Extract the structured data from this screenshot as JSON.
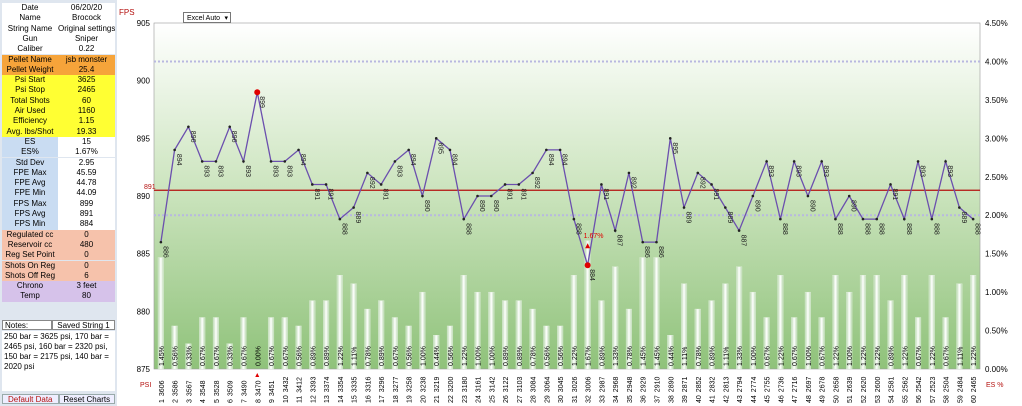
{
  "sidebar": {
    "rows": [
      {
        "label": "Date",
        "value": "06/20/20",
        "group": "white"
      },
      {
        "label": "Name",
        "value": "Brocock",
        "group": "white"
      },
      {
        "label": "String Name",
        "value": "Original settings",
        "group": "white"
      },
      {
        "label": "Gun",
        "value": "Sniper",
        "group": "white"
      },
      {
        "label": "Caliber",
        "value": "0.22",
        "group": "white"
      },
      {
        "label": "Pellet Name",
        "value": "jsb monster",
        "group": "orange"
      },
      {
        "label": "Pellet  Weight",
        "value": "25.4",
        "group": "orange"
      },
      {
        "label": "Psi Start",
        "value": "3625",
        "group": "yellow"
      },
      {
        "label": "Psi Stop",
        "value": "2465",
        "group": "yellow"
      },
      {
        "label": "Total Shots",
        "value": "60",
        "group": "yellow"
      },
      {
        "label": "Air Used",
        "value": "1160",
        "group": "yellow"
      },
      {
        "label": "Efficiency",
        "value": "1.15",
        "group": "yellow"
      },
      {
        "label": "Avg. lbs/Shot",
        "value": "19.33",
        "group": "yellow"
      },
      {
        "label": "ES",
        "value": "15",
        "group": "blue"
      },
      {
        "label": "ES%",
        "value": "1.67%",
        "group": "blue"
      },
      {
        "label": "Std Dev",
        "value": "2.95",
        "group": "blue"
      },
      {
        "label": "FPE Max",
        "value": "45.59",
        "group": "blue"
      },
      {
        "label": "FPE Avg",
        "value": "44.78",
        "group": "blue"
      },
      {
        "label": "FPE Min",
        "value": "44.09",
        "group": "blue"
      },
      {
        "label": "FPS Max",
        "value": "899",
        "group": "blue"
      },
      {
        "label": "FPS Avg",
        "value": "891",
        "group": "blue"
      },
      {
        "label": "FPS Min",
        "value": "884",
        "group": "blue"
      },
      {
        "label": "Regulated cc",
        "value": "0",
        "group": "salmon"
      },
      {
        "label": "Reservoir cc",
        "value": "480",
        "group": "salmon"
      },
      {
        "label": "Reg Set Point",
        "value": "0",
        "group": "salmon"
      },
      {
        "label": "Shots On Reg",
        "value": "0",
        "group": "salmon"
      },
      {
        "label": "Shots Off Reg",
        "value": "6",
        "group": "salmon"
      },
      {
        "label": "Chrono",
        "value": "3 feet",
        "group": "purple"
      },
      {
        "label": "Temp",
        "value": "80",
        "group": "purple"
      }
    ],
    "notes_label": "Notes:",
    "saved_label": "Saved String 1",
    "notes_text": "250 bar = 3625 psi, 170 bar = 2465 psi, 160 bar = 2320 psi, 150 bar = 2175 psi, 140 bar = 2020 psi",
    "default_data": "Default Data",
    "reset_charts": "Reset Charts",
    "group_colors": {
      "white": "#ffffff",
      "orange": "#f6a43a",
      "yellow": "#ffff33",
      "blue": "#c9dcf2",
      "salmon": "#f6c2ab",
      "purple": "#d6c2ea"
    }
  },
  "dropdown": {
    "value": "Excel Auto"
  },
  "chart_data": {
    "type": "line",
    "ylabel_left": "FPS",
    "ylabel_right": "",
    "left_ticks": [
      "905",
      "900",
      "895",
      "890",
      "885",
      "880",
      "875"
    ],
    "right_ticks": [
      "4.50%",
      "4.00%",
      "3.50%",
      "3.00%",
      "2.50%",
      "2.00%",
      "1.50%",
      "1.00%",
      "0.50%",
      "0.00%"
    ],
    "ylim": [
      875,
      905
    ],
    "y2lim": [
      0,
      4.5
    ],
    "psi_label": "PSI",
    "es_label": "ES %",
    "avg_line_label": "891",
    "avg_fps": 890.5,
    "series_fps": [
      886,
      894,
      896,
      893,
      893,
      896,
      893,
      899,
      893,
      893,
      894,
      891,
      891,
      888,
      889,
      892,
      891,
      893,
      894,
      890,
      895,
      894,
      888,
      890,
      890,
      891,
      891,
      892,
      894,
      894,
      888,
      884,
      891,
      887,
      892,
      886,
      886,
      895,
      889,
      892,
      891,
      889,
      887,
      890,
      893,
      888,
      893,
      890,
      893,
      888,
      890,
      888,
      888,
      891,
      888,
      893,
      888,
      893,
      889,
      888
    ],
    "fps_labels": [
      "886",
      "894",
      "896",
      "893",
      "893",
      "896",
      "893",
      "899",
      "893",
      "893",
      "894",
      "891",
      "891",
      "888",
      "889",
      "892",
      "891",
      "893",
      "894",
      "890",
      "895",
      "894",
      "888",
      "890",
      "890",
      "891",
      "891",
      "892",
      "894",
      "894",
      "888",
      "884",
      "891",
      "887",
      "892",
      "886",
      "886",
      "895",
      "889",
      "892",
      "891",
      "889",
      "887",
      "890",
      "893",
      "888",
      "893",
      "890",
      "893",
      "888",
      "890",
      "888",
      "888",
      "891",
      "888",
      "893",
      "888",
      "893",
      "889",
      "888"
    ],
    "shots": [
      "1",
      "2",
      "3",
      "4",
      "5",
      "6",
      "7",
      "8",
      "9",
      "10",
      "11",
      "12",
      "13",
      "14",
      "15",
      "16",
      "17",
      "18",
      "19",
      "20",
      "21",
      "22",
      "23",
      "24",
      "25",
      "26",
      "27",
      "28",
      "29",
      "30",
      "31",
      "32",
      "33",
      "34",
      "35",
      "36",
      "37",
      "38",
      "39",
      "40",
      "41",
      "42",
      "43",
      "44",
      "45",
      "46",
      "47",
      "48",
      "49",
      "50",
      "51",
      "52",
      "53",
      "54",
      "55",
      "56",
      "57",
      "58",
      "59",
      "60"
    ],
    "psi": [
      "3606",
      "3586",
      "3567",
      "3548",
      "3528",
      "3509",
      "3490",
      "3470",
      "3451",
      "3432",
      "3412",
      "3393",
      "3374",
      "3354",
      "3335",
      "3316",
      "3296",
      "3277",
      "3258",
      "3238",
      "3219",
      "3200",
      "3180",
      "3161",
      "3142",
      "3122",
      "3103",
      "3084",
      "3064",
      "3045",
      "3026",
      "3006",
      "2987",
      "2968",
      "2948",
      "2929",
      "2910",
      "2890",
      "2871",
      "2852",
      "2832",
      "2813",
      "2794",
      "2774",
      "2755",
      "2736",
      "2716",
      "2697",
      "2678",
      "2658",
      "2639",
      "2620",
      "2600",
      "2581",
      "2562",
      "2542",
      "2523",
      "2504",
      "2484",
      "2465"
    ],
    "es_percent": [
      1.45,
      0.56,
      0.33,
      0.67,
      0.67,
      0.33,
      0.67,
      0.0,
      0.67,
      0.67,
      0.56,
      0.89,
      0.89,
      1.22,
      1.11,
      0.78,
      0.89,
      0.67,
      0.56,
      1.0,
      0.44,
      0.56,
      1.22,
      1.0,
      1.0,
      0.89,
      0.89,
      0.78,
      0.56,
      0.56,
      1.22,
      1.67,
      0.89,
      1.33,
      0.78,
      1.45,
      1.45,
      0.44,
      1.11,
      0.78,
      0.89,
      1.11,
      1.33,
      1.0,
      0.67,
      1.22,
      0.67,
      1.0,
      0.67,
      1.22,
      1.0,
      1.22,
      1.22,
      0.89,
      1.22,
      0.67,
      1.22,
      0.67,
      1.11,
      1.22
    ],
    "es_labels": [
      "1.45%",
      "0.56%",
      "0.33%",
      "0.67%",
      "0.67%",
      "0.33%",
      "0.67%",
      "0.00%",
      "0.67%",
      "0.67%",
      "0.56%",
      "0.89%",
      "0.89%",
      "1.22%",
      "1.11%",
      "0.78%",
      "0.89%",
      "0.67%",
      "0.56%",
      "1.00%",
      "0.44%",
      "0.56%",
      "1.22%",
      "1.00%",
      "1.00%",
      "0.89%",
      "0.89%",
      "0.78%",
      "0.56%",
      "0.56%",
      "1.22%",
      "1.67%",
      "0.89%",
      "1.33%",
      "0.78%",
      "1.45%",
      "1.45%",
      "0.44%",
      "1.11%",
      "0.78%",
      "0.89%",
      "1.11%",
      "1.33%",
      "1.00%",
      "0.67%",
      "1.22%",
      "0.67%",
      "1.00%",
      "0.67%",
      "1.22%",
      "1.00%",
      "1.22%",
      "1.22%",
      "0.89%",
      "1.22%",
      "0.67%",
      "1.22%",
      "0.67%",
      "1.11%",
      "1.22%"
    ],
    "es_band_percent": 2.0,
    "es_upper_percent": 4.0,
    "annotation_es": "1.67%",
    "max_shot_index": 7,
    "min_shot_index": 31,
    "colors": {
      "line": "#6b4fae",
      "avg_line": "#b4100e",
      "marker_hi": "#e00000",
      "label_red": "#b4100e",
      "dotted": "#b8b8e0"
    }
  }
}
